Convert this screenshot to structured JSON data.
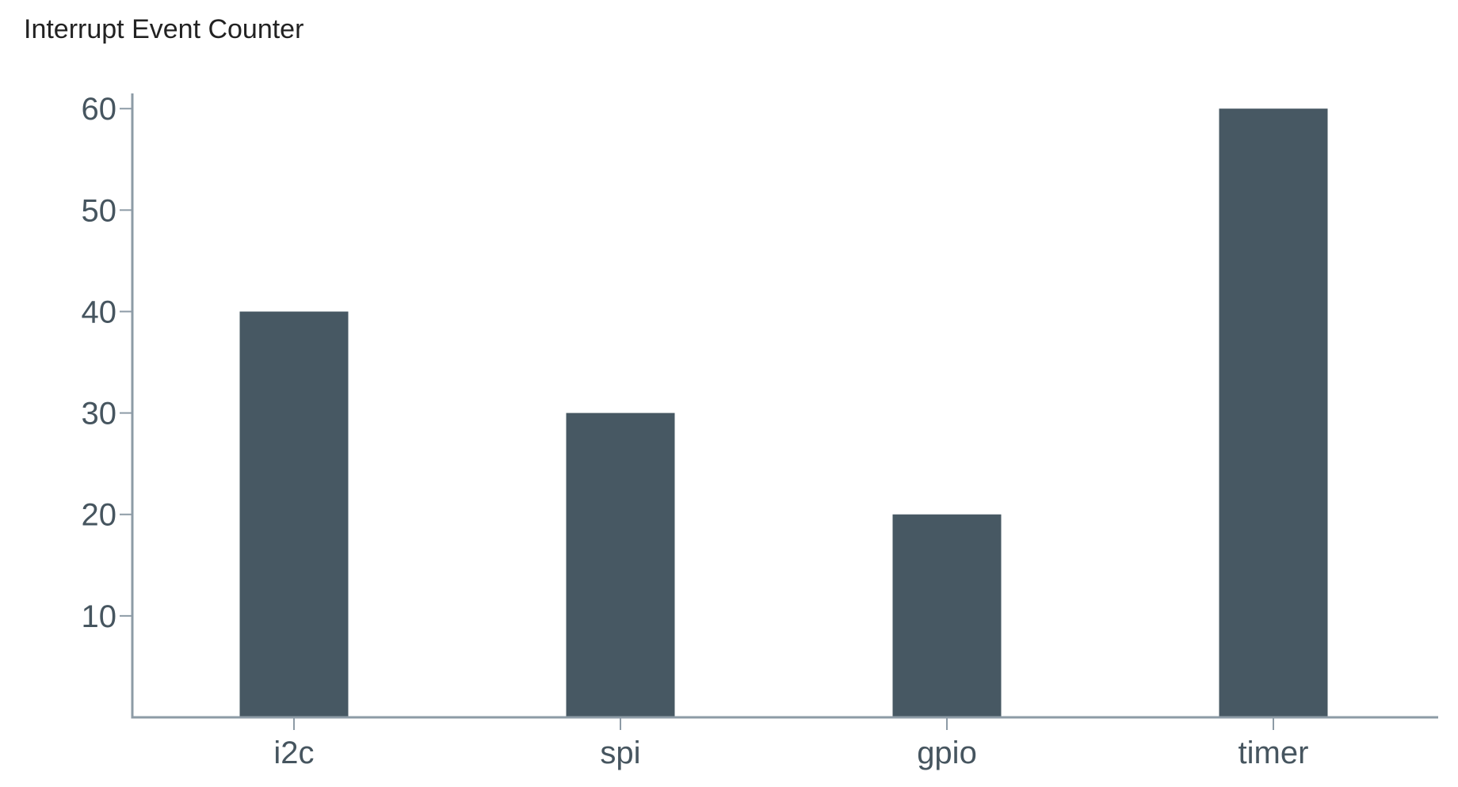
{
  "chart_data": {
    "type": "bar",
    "title": "Interrupt Event Counter",
    "xlabel": "",
    "ylabel": "",
    "categories": [
      "i2c",
      "spi",
      "gpio",
      "timer"
    ],
    "values": [
      40,
      30,
      20,
      60
    ],
    "ylim": [
      0,
      61.5
    ],
    "yticks": [
      10,
      20,
      30,
      40,
      50,
      60
    ],
    "grid": false,
    "legend": "none",
    "colors": {
      "bar": "#475863",
      "axis": "#8d9ba6",
      "text": "#46555f",
      "title": "#222222"
    }
  }
}
